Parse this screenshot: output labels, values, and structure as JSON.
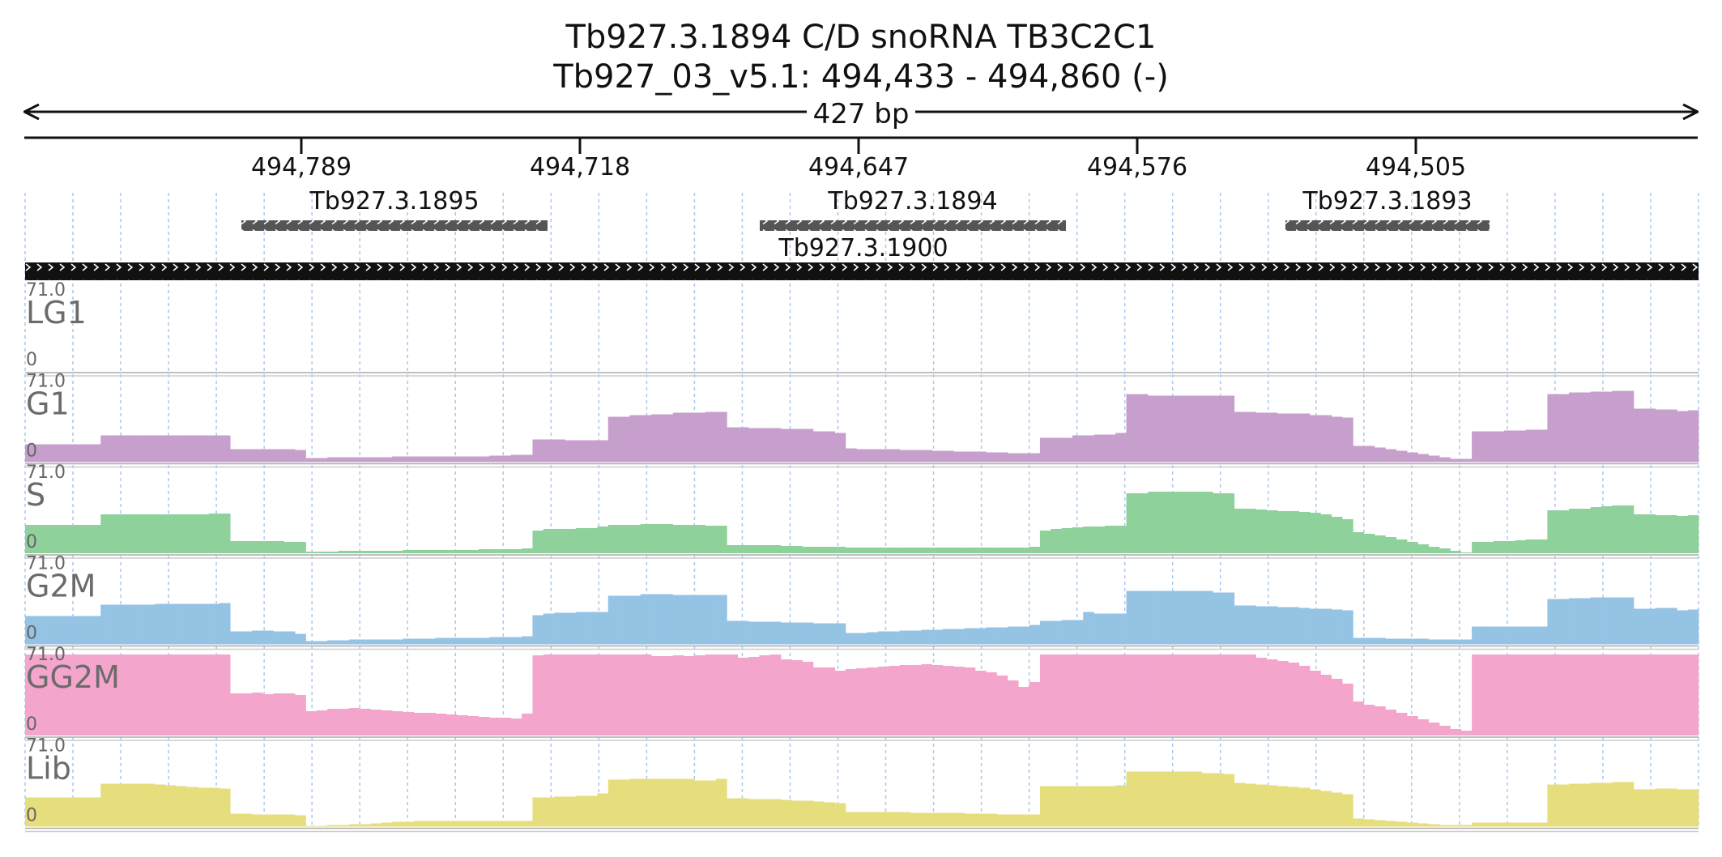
{
  "header": {
    "title": "Tb927.3.1894  C/D snoRNA  TB3C2C1",
    "location": "Tb927_03_v5.1: 494,433 - 494,860 (-)",
    "span_label": "427 bp"
  },
  "ruler": {
    "ticks": [
      "494,789",
      "494,718",
      "494,647",
      "494,576",
      "494,505"
    ]
  },
  "features": [
    {
      "label": "Tb927.3.1895",
      "color": "#555555"
    },
    {
      "label": "Tb927.3.1894",
      "color": "#555555"
    },
    {
      "label": "Tb927.3.1893",
      "color": "#555555"
    },
    {
      "label": "Tb927.3.1900",
      "color": "#111111"
    }
  ],
  "tracks": [
    {
      "name": "LG1",
      "max_label": "71.0",
      "min_label": "0",
      "color": "#cccccc",
      "levels": [
        0,
        0,
        0,
        0,
        0,
        0,
        0,
        0,
        0,
        0,
        0,
        0,
        0,
        0,
        0,
        0,
        0,
        0,
        0,
        0,
        0,
        0,
        0,
        0,
        0,
        0,
        0,
        0,
        0,
        0,
        0,
        0,
        0,
        0,
        0,
        0,
        0,
        0,
        0,
        0,
        0,
        0,
        0,
        0,
        0,
        0,
        0,
        0,
        0,
        0,
        0,
        0,
        0,
        0,
        0,
        0,
        0,
        0,
        0,
        0,
        0,
        0,
        0,
        0,
        0,
        0,
        0,
        0,
        0,
        0,
        0,
        0,
        0,
        0,
        0,
        0,
        0,
        0,
        0,
        0,
        0,
        0,
        0,
        0,
        0,
        0,
        0,
        0,
        0,
        0,
        0,
        0,
        0,
        0,
        0,
        0,
        0,
        0,
        0,
        0,
        0,
        0,
        0,
        0,
        0,
        0,
        0,
        0,
        0,
        0,
        0,
        0,
        0,
        0,
        0,
        0,
        0,
        0,
        0,
        0
      ]
    },
    {
      "name": "G1",
      "max_label": "71.0",
      "min_label": "0",
      "color": "#c79fcd",
      "levels": [
        0.22,
        0.22,
        0.22,
        0.22,
        0.22,
        0.22,
        0.22,
        0.33,
        0.33,
        0.33,
        0.33,
        0.33,
        0.33,
        0.33,
        0.33,
        0.33,
        0.33,
        0.33,
        0.33,
        0.16,
        0.16,
        0.16,
        0.16,
        0.16,
        0.16,
        0.15,
        0.05,
        0.05,
        0.06,
        0.06,
        0.06,
        0.06,
        0.06,
        0.06,
        0.07,
        0.07,
        0.07,
        0.07,
        0.07,
        0.07,
        0.07,
        0.07,
        0.07,
        0.08,
        0.08,
        0.09,
        0.09,
        0.28,
        0.28,
        0.28,
        0.27,
        0.27,
        0.27,
        0.27,
        0.56,
        0.56,
        0.58,
        0.58,
        0.59,
        0.59,
        0.61,
        0.61,
        0.61,
        0.62,
        0.62,
        0.43,
        0.43,
        0.42,
        0.42,
        0.42,
        0.41,
        0.41,
        0.41,
        0.38,
        0.38,
        0.36,
        0.17,
        0.16,
        0.16,
        0.16,
        0.16,
        0.15,
        0.15,
        0.15,
        0.14,
        0.14,
        0.13,
        0.13,
        0.13,
        0.12,
        0.12,
        0.11,
        0.11,
        0.11,
        0.3,
        0.3,
        0.3,
        0.33,
        0.33,
        0.34,
        0.34,
        0.36,
        0.84,
        0.84,
        0.82,
        0.82,
        0.82,
        0.82,
        0.82,
        0.82,
        0.82,
        0.82,
        0.62,
        0.62,
        0.61,
        0.61,
        0.6,
        0.6,
        0.6,
        0.58,
        0.58,
        0.56,
        0.55,
        0.2,
        0.2,
        0.18,
        0.16,
        0.14,
        0.12,
        0.1,
        0.08,
        0.06,
        0.04,
        0.04,
        0.38,
        0.38,
        0.38,
        0.39,
        0.39,
        0.4,
        0.4,
        0.84,
        0.84,
        0.86,
        0.86,
        0.87,
        0.87,
        0.88,
        0.88,
        0.66,
        0.66,
        0.65,
        0.65,
        0.63,
        0.64
      ]
    },
    {
      "name": "S",
      "max_label": "71.0",
      "min_label": "0",
      "color": "#8ed19b",
      "levels": [
        0.35,
        0.35,
        0.35,
        0.35,
        0.35,
        0.35,
        0.35,
        0.48,
        0.48,
        0.48,
        0.48,
        0.48,
        0.48,
        0.48,
        0.48,
        0.48,
        0.48,
        0.49,
        0.49,
        0.15,
        0.15,
        0.15,
        0.15,
        0.15,
        0.14,
        0.14,
        0.02,
        0.02,
        0.02,
        0.03,
        0.03,
        0.03,
        0.03,
        0.03,
        0.03,
        0.04,
        0.04,
        0.04,
        0.04,
        0.04,
        0.04,
        0.04,
        0.05,
        0.05,
        0.05,
        0.05,
        0.06,
        0.28,
        0.3,
        0.3,
        0.3,
        0.31,
        0.31,
        0.33,
        0.35,
        0.35,
        0.35,
        0.36,
        0.36,
        0.36,
        0.35,
        0.35,
        0.35,
        0.34,
        0.34,
        0.1,
        0.1,
        0.1,
        0.1,
        0.1,
        0.09,
        0.09,
        0.08,
        0.08,
        0.08,
        0.08,
        0.07,
        0.07,
        0.07,
        0.07,
        0.07,
        0.07,
        0.07,
        0.07,
        0.07,
        0.07,
        0.07,
        0.07,
        0.07,
        0.07,
        0.07,
        0.07,
        0.07,
        0.08,
        0.28,
        0.3,
        0.31,
        0.32,
        0.33,
        0.33,
        0.34,
        0.34,
        0.74,
        0.74,
        0.76,
        0.76,
        0.76,
        0.76,
        0.76,
        0.76,
        0.74,
        0.74,
        0.55,
        0.55,
        0.54,
        0.53,
        0.52,
        0.52,
        0.51,
        0.5,
        0.48,
        0.45,
        0.42,
        0.26,
        0.24,
        0.22,
        0.2,
        0.17,
        0.14,
        0.11,
        0.08,
        0.06,
        0.03,
        0.01,
        0.14,
        0.14,
        0.15,
        0.15,
        0.16,
        0.17,
        0.17,
        0.53,
        0.53,
        0.55,
        0.55,
        0.57,
        0.58,
        0.59,
        0.59,
        0.48,
        0.48,
        0.47,
        0.47,
        0.46,
        0.47
      ]
    },
    {
      "name": "G2M",
      "max_label": "71.0",
      "min_label": "0",
      "color": "#94c3e4",
      "levels": [
        0.35,
        0.35,
        0.35,
        0.35,
        0.35,
        0.35,
        0.35,
        0.49,
        0.49,
        0.49,
        0.49,
        0.49,
        0.5,
        0.5,
        0.5,
        0.5,
        0.5,
        0.5,
        0.51,
        0.16,
        0.16,
        0.17,
        0.17,
        0.16,
        0.16,
        0.13,
        0.04,
        0.04,
        0.05,
        0.05,
        0.06,
        0.06,
        0.06,
        0.06,
        0.06,
        0.07,
        0.07,
        0.07,
        0.08,
        0.08,
        0.08,
        0.08,
        0.08,
        0.09,
        0.09,
        0.09,
        0.1,
        0.36,
        0.38,
        0.39,
        0.39,
        0.4,
        0.4,
        0.4,
        0.6,
        0.6,
        0.6,
        0.62,
        0.62,
        0.62,
        0.61,
        0.61,
        0.61,
        0.61,
        0.61,
        0.29,
        0.29,
        0.28,
        0.28,
        0.28,
        0.27,
        0.27,
        0.27,
        0.26,
        0.26,
        0.26,
        0.14,
        0.14,
        0.15,
        0.16,
        0.16,
        0.17,
        0.17,
        0.18,
        0.18,
        0.19,
        0.19,
        0.2,
        0.2,
        0.21,
        0.21,
        0.22,
        0.22,
        0.24,
        0.29,
        0.29,
        0.3,
        0.3,
        0.4,
        0.38,
        0.38,
        0.38,
        0.66,
        0.66,
        0.66,
        0.66,
        0.66,
        0.66,
        0.66,
        0.66,
        0.64,
        0.64,
        0.48,
        0.48,
        0.47,
        0.47,
        0.46,
        0.46,
        0.45,
        0.44,
        0.44,
        0.43,
        0.42,
        0.08,
        0.08,
        0.08,
        0.07,
        0.07,
        0.07,
        0.07,
        0.06,
        0.06,
        0.06,
        0.06,
        0.22,
        0.22,
        0.22,
        0.22,
        0.22,
        0.22,
        0.22,
        0.56,
        0.56,
        0.57,
        0.57,
        0.58,
        0.58,
        0.58,
        0.58,
        0.44,
        0.44,
        0.45,
        0.45,
        0.42,
        0.43
      ]
    },
    {
      "name": "GG2M",
      "max_label": "71.0",
      "min_label": "0",
      "color": "#f4a5cc",
      "levels": [
        1.0,
        1.0,
        1.0,
        1.0,
        1.0,
        1.0,
        1.0,
        1.0,
        1.0,
        1.0,
        1.0,
        1.0,
        1.0,
        1.0,
        1.0,
        1.0,
        1.0,
        1.0,
        1.0,
        0.52,
        0.52,
        0.53,
        0.51,
        0.52,
        0.52,
        0.5,
        0.3,
        0.31,
        0.33,
        0.33,
        0.34,
        0.33,
        0.32,
        0.31,
        0.3,
        0.29,
        0.28,
        0.28,
        0.27,
        0.26,
        0.25,
        0.24,
        0.23,
        0.22,
        0.22,
        0.21,
        0.27,
        0.99,
        1.0,
        1.0,
        1.0,
        1.0,
        1.0,
        1.0,
        1.0,
        1.0,
        1.0,
        1.0,
        0.98,
        0.98,
        0.99,
        0.98,
        0.99,
        1.0,
        1.0,
        1.0,
        0.96,
        0.97,
        0.99,
        1.0,
        0.94,
        0.93,
        0.91,
        0.84,
        0.84,
        0.8,
        0.82,
        0.83,
        0.84,
        0.85,
        0.86,
        0.87,
        0.87,
        0.88,
        0.87,
        0.86,
        0.85,
        0.84,
        0.8,
        0.78,
        0.74,
        0.68,
        0.6,
        0.66,
        1.0,
        1.0,
        1.0,
        1.0,
        1.0,
        1.0,
        1.0,
        1.0,
        1.0,
        1.0,
        1.0,
        1.0,
        1.0,
        1.0,
        1.0,
        1.0,
        1.0,
        1.0,
        1.0,
        1.0,
        0.96,
        0.94,
        0.92,
        0.9,
        0.86,
        0.8,
        0.75,
        0.7,
        0.64,
        0.42,
        0.38,
        0.36,
        0.32,
        0.28,
        0.24,
        0.2,
        0.16,
        0.12,
        0.08,
        0.06,
        1.0,
        1.0,
        1.0,
        1.0,
        1.0,
        1.0,
        1.0,
        1.0,
        1.0,
        1.0,
        1.0,
        1.0,
        1.0,
        1.0,
        1.0,
        1.0,
        1.0,
        1.0,
        1.0,
        1.0,
        1.0
      ]
    },
    {
      "name": "Lib",
      "max_label": "71.0",
      "min_label": "0",
      "color": "#e6de7c",
      "levels": [
        0.36,
        0.36,
        0.36,
        0.36,
        0.36,
        0.36,
        0.36,
        0.53,
        0.53,
        0.53,
        0.53,
        0.53,
        0.52,
        0.51,
        0.5,
        0.49,
        0.48,
        0.48,
        0.47,
        0.16,
        0.16,
        0.15,
        0.15,
        0.15,
        0.15,
        0.14,
        0.01,
        0.01,
        0.02,
        0.02,
        0.03,
        0.03,
        0.04,
        0.05,
        0.06,
        0.06,
        0.07,
        0.07,
        0.07,
        0.07,
        0.07,
        0.07,
        0.07,
        0.07,
        0.07,
        0.07,
        0.07,
        0.36,
        0.36,
        0.37,
        0.37,
        0.38,
        0.38,
        0.41,
        0.58,
        0.58,
        0.59,
        0.59,
        0.59,
        0.59,
        0.59,
        0.59,
        0.57,
        0.57,
        0.59,
        0.35,
        0.35,
        0.34,
        0.34,
        0.34,
        0.33,
        0.32,
        0.32,
        0.31,
        0.3,
        0.29,
        0.18,
        0.18,
        0.18,
        0.18,
        0.18,
        0.18,
        0.17,
        0.17,
        0.17,
        0.17,
        0.17,
        0.16,
        0.16,
        0.16,
        0.15,
        0.15,
        0.15,
        0.15,
        0.5,
        0.5,
        0.5,
        0.5,
        0.5,
        0.5,
        0.5,
        0.51,
        0.68,
        0.68,
        0.68,
        0.68,
        0.68,
        0.68,
        0.68,
        0.66,
        0.66,
        0.65,
        0.54,
        0.53,
        0.52,
        0.51,
        0.5,
        0.49,
        0.48,
        0.46,
        0.44,
        0.42,
        0.4,
        0.1,
        0.09,
        0.08,
        0.07,
        0.06,
        0.05,
        0.04,
        0.03,
        0.02,
        0.02,
        0.02,
        0.05,
        0.05,
        0.05,
        0.05,
        0.05,
        0.05,
        0.05,
        0.52,
        0.52,
        0.53,
        0.53,
        0.54,
        0.54,
        0.55,
        0.55,
        0.46,
        0.46,
        0.47,
        0.47,
        0.46,
        0.46
      ]
    }
  ]
}
